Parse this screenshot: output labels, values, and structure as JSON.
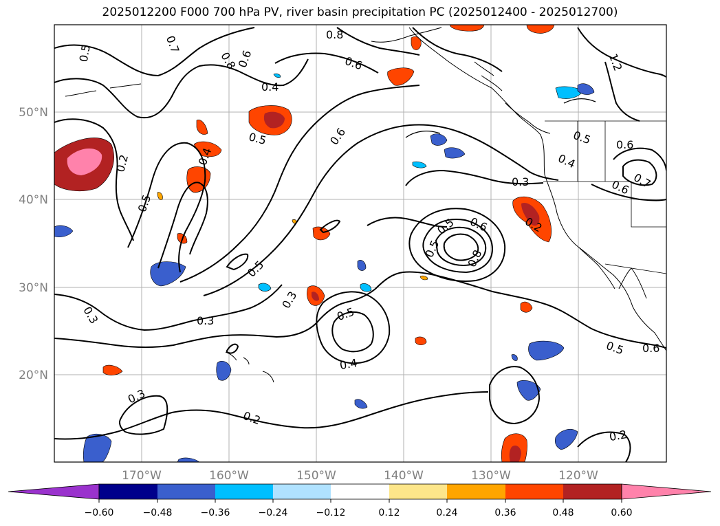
{
  "title": "2025012200 F000 700 hPa PV, river basin precipitation PC (2025012400 - 2025012700)",
  "map": {
    "lon_labels": [
      "170°W",
      "160°W",
      "150°W",
      "140°W",
      "130°W",
      "120°W"
    ],
    "lat_labels": [
      "50°N",
      "40°N",
      "30°N",
      "20°N"
    ],
    "contour_labels": [
      "0.5",
      "0.7",
      "0.8",
      "0.6",
      "0.4",
      "0.8",
      "0.6",
      "0.5",
      "0.6",
      "0.4",
      "0.2",
      "0.5",
      "0.5",
      "0.3",
      "0.5",
      "0.3",
      "0.3",
      "0.5",
      "0.4",
      "0.6",
      "0.8",
      "0.5",
      "0.3",
      "0.4",
      "0.5",
      "0.6",
      "0.7",
      "0.6",
      "0.2",
      "0.2",
      "0.2",
      "0.3",
      "0.5",
      "0.6",
      "1.2"
    ]
  },
  "colorbar": {
    "ticks": [
      "−0.60",
      "−0.48",
      "−0.36",
      "−0.24",
      "−0.12",
      "0.12",
      "0.24",
      "0.36",
      "0.48",
      "0.60"
    ],
    "colors": [
      "#9a32cd",
      "#00008b",
      "#3a5fcd",
      "#00bfff",
      "#b0e2ff",
      "#ffffff",
      "#fde68a",
      "#ffa500",
      "#ff4500",
      "#b22222",
      "#ff82ab"
    ]
  }
}
